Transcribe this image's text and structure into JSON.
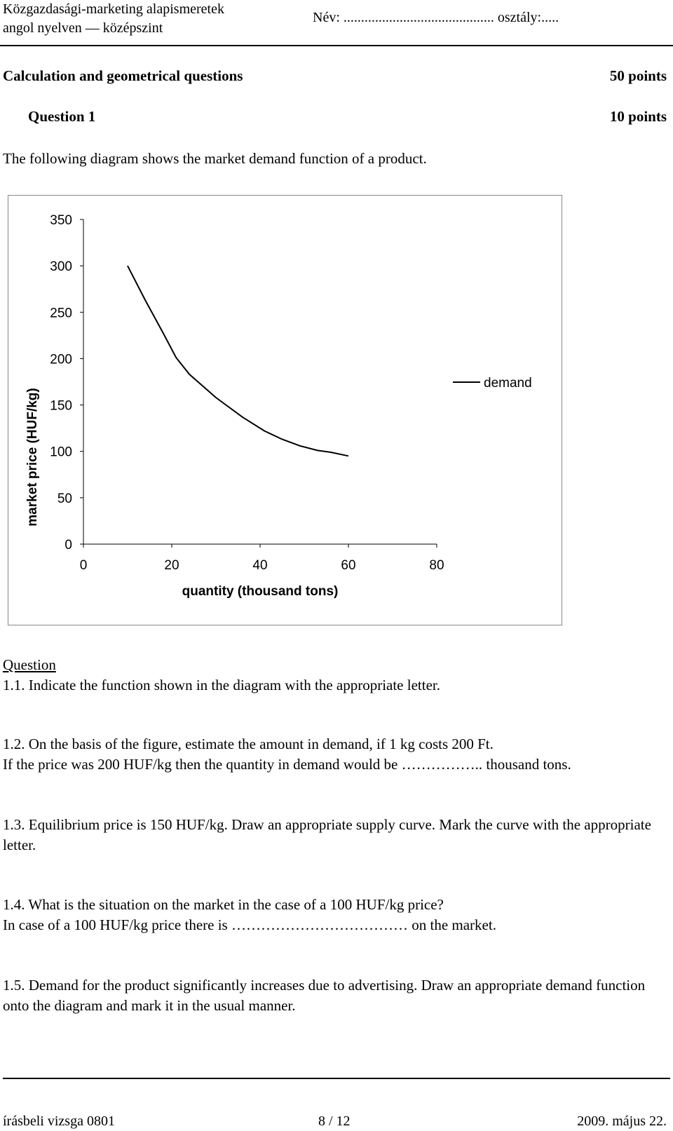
{
  "header": {
    "line1": "Közgazdasági-marketing alapismeretek",
    "line2": "angol nyelven — középszint",
    "name_field": "Név: ........................................... osztály:....."
  },
  "section": {
    "title": "Calculation and geometrical questions",
    "points": "50 points"
  },
  "question": {
    "title": "Question 1",
    "points": "10 points",
    "intro": "The following diagram shows the market demand function of a product."
  },
  "chart_data": {
    "type": "line",
    "xlabel": "quantity (thousand tons)",
    "ylabel": "market price (HUF/kg)",
    "xlim": [
      0,
      80
    ],
    "ylim": [
      0,
      350
    ],
    "x_ticks": [
      "0",
      "20",
      "40",
      "60",
      "80"
    ],
    "y_ticks": [
      "0",
      "50",
      "100",
      "150",
      "200",
      "250",
      "300",
      "350"
    ],
    "legend": "right",
    "grid": false,
    "series": [
      {
        "name": "demand",
        "color": "#000000",
        "points": [
          [
            10,
            300
          ],
          [
            14,
            263
          ],
          [
            18,
            228
          ],
          [
            21,
            201
          ],
          [
            24,
            183
          ],
          [
            30,
            158
          ],
          [
            36,
            137
          ],
          [
            41,
            122
          ],
          [
            45,
            113
          ],
          [
            49,
            106
          ],
          [
            53,
            101
          ],
          [
            56,
            99
          ],
          [
            60,
            95
          ]
        ]
      }
    ]
  },
  "tasks": {
    "heading": "Question",
    "q1_1": "1.1. Indicate the function shown in the diagram with the appropriate letter.",
    "q1_2_a": "1.2. On the basis of the figure, estimate the amount in demand, if 1 kg costs 200 Ft.",
    "q1_2_b": "If the price was 200 HUF/kg then the quantity in demand would be …………….. thousand tons.",
    "q1_3": "1.3. Equilibrium price is 150 HUF/kg. Draw an appropriate supply curve. Mark the curve with the appropriate letter.",
    "q1_4_a": "1.4. What is the situation on the market in the case of a 100 HUF/kg price?",
    "q1_4_b": "In case of a 100 HUF/kg price there is ……………………………… on the market.",
    "q1_5": "1.5. Demand for the product significantly increases due to advertising. Draw an appropriate demand function onto the diagram and mark it in the usual manner."
  },
  "footer": {
    "left": "írásbeli vizsga 0801",
    "center": "8 / 12",
    "right": "2009. május 22."
  }
}
